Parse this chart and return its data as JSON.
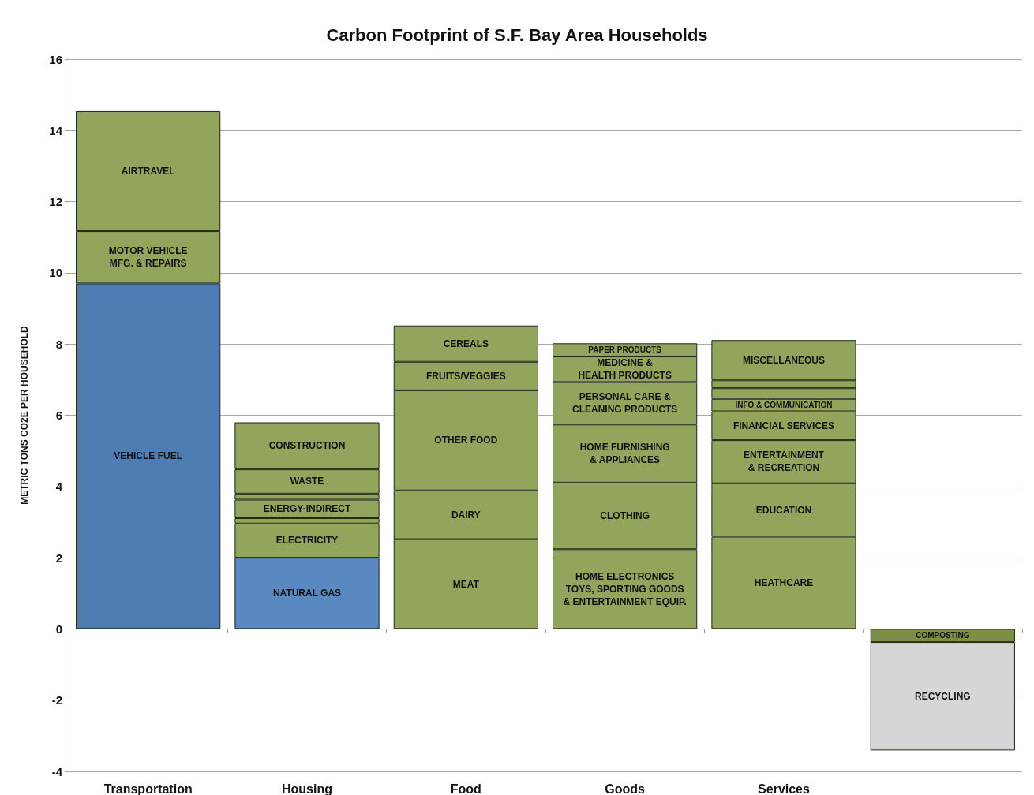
{
  "chart_data": {
    "type": "bar",
    "title": "Carbon Footprint of S.F. Bay Area Households",
    "ylabel": "METRIC TONS CO2E PER HOUSEHOLD",
    "categories": [
      "Transportation",
      "Housing",
      "Food",
      "Goods",
      "Services",
      null
    ],
    "stacked": true,
    "grid": "y",
    "legend": false,
    "ylim": [
      -4,
      16
    ],
    "yticks": [
      -4,
      -2,
      0,
      2,
      4,
      6,
      8,
      10,
      12,
      14,
      16
    ],
    "series": [
      {
        "name": "VEHICLE FUEL",
        "color": "#4f7db3",
        "values": [
          9.7,
          null,
          null,
          null,
          null,
          null
        ]
      },
      {
        "name": "MOTOR VEHICLE\nMFG. & REPAIRS",
        "color": "#93a55c",
        "values": [
          1.47,
          null,
          null,
          null,
          null,
          null
        ]
      },
      {
        "name": "AIRTRAVEL",
        "color": "#93a55c",
        "values": [
          3.37,
          null,
          null,
          null,
          null,
          null
        ]
      },
      {
        "name": "NATURAL GAS",
        "color": "#5a88c0",
        "values": [
          null,
          2.0,
          null,
          null,
          null,
          null
        ]
      },
      {
        "name": "ELECTRICITY",
        "color": "#93a55c",
        "values": [
          null,
          0.96,
          null,
          null,
          null,
          null
        ]
      },
      {
        "color": "#93a55c",
        "values": [
          null,
          0.15,
          null,
          null,
          null,
          null
        ]
      },
      {
        "name": "ENERGY-INDIRECT",
        "color": "#93a55c",
        "values": [
          null,
          0.52,
          null,
          null,
          null,
          null
        ]
      },
      {
        "color": "#93a55c",
        "values": [
          null,
          0.17,
          null,
          null,
          null,
          null
        ]
      },
      {
        "name": "WASTE",
        "color": "#93a55c",
        "values": [
          null,
          0.68,
          null,
          null,
          null,
          null
        ]
      },
      {
        "name": "CONSTRUCTION",
        "color": "#93a55c",
        "values": [
          null,
          1.32,
          null,
          null,
          null,
          null
        ]
      },
      {
        "name": "MEAT",
        "color": "#93a55c",
        "values": [
          null,
          null,
          2.52,
          null,
          null,
          null
        ]
      },
      {
        "name": "DAIRY",
        "color": "#93a55c",
        "values": [
          null,
          null,
          1.37,
          null,
          null,
          null
        ]
      },
      {
        "name": "OTHER FOOD",
        "color": "#93a55c",
        "values": [
          null,
          null,
          2.81,
          null,
          null,
          null
        ]
      },
      {
        "name": "FRUITS/VEGGIES",
        "color": "#93a55c",
        "values": [
          null,
          null,
          0.8,
          null,
          null,
          null
        ]
      },
      {
        "name": "CEREALS",
        "color": "#93a55c",
        "values": [
          null,
          null,
          1.02,
          null,
          null,
          null
        ]
      },
      {
        "name": "HOME ELECTRONICS\nTOYS, SPORTING GOODS\n& ENTERTAINMENT EQUIP.",
        "color": "#93a55c",
        "values": [
          null,
          null,
          null,
          2.24,
          null,
          null
        ]
      },
      {
        "name": "CLOTHING",
        "color": "#93a55c",
        "values": [
          null,
          null,
          null,
          1.87,
          null,
          null
        ]
      },
      {
        "name": "HOME FURNISHING\n& APPLIANCES",
        "color": "#93a55c",
        "values": [
          null,
          null,
          null,
          1.63,
          null,
          null
        ]
      },
      {
        "name": "PERSONAL CARE &\nCLEANING PRODUCTS",
        "color": "#93a55c",
        "values": [
          null,
          null,
          null,
          1.19,
          null,
          null
        ]
      },
      {
        "name": "MEDICINE &\nHEALTH PRODUCTS",
        "color": "#93a55c",
        "values": [
          null,
          null,
          null,
          0.72,
          null,
          null
        ]
      },
      {
        "name": "PAPER PRODUCTS",
        "color": "#93a55c",
        "values": [
          null,
          null,
          null,
          0.37,
          null,
          null
        ]
      },
      {
        "name": "HEATHCARE",
        "color": "#93a55c",
        "values": [
          null,
          null,
          null,
          null,
          2.59,
          null
        ]
      },
      {
        "name": "EDUCATION",
        "color": "#93a55c",
        "values": [
          null,
          null,
          null,
          null,
          1.5,
          null
        ]
      },
      {
        "name": "ENTERTAINMENT\n& RECREATION",
        "color": "#93a55c",
        "values": [
          null,
          null,
          null,
          null,
          1.21,
          null
        ]
      },
      {
        "name": "FINANCIAL SERVICES",
        "color": "#93a55c",
        "values": [
          null,
          null,
          null,
          null,
          0.81,
          null
        ]
      },
      {
        "name": "INFO & COMMUNICATION",
        "color": "#93a55c",
        "values": [
          null,
          null,
          null,
          null,
          0.35,
          null
        ]
      },
      {
        "color": "#93a55c",
        "values": [
          null,
          null,
          null,
          null,
          0.3,
          null
        ]
      },
      {
        "color": "#93a55c",
        "values": [
          null,
          null,
          null,
          null,
          0.22,
          null
        ]
      },
      {
        "name": "MISCELLANEOUS",
        "color": "#93a55c",
        "values": [
          null,
          null,
          null,
          null,
          1.13,
          null
        ]
      },
      {
        "name": "COMPOSTING",
        "color": "#7d8f45",
        "values": [
          null,
          null,
          null,
          null,
          null,
          -0.37
        ]
      },
      {
        "name": "RECYCLING",
        "color": "#d6d6d6",
        "values": [
          null,
          null,
          null,
          null,
          null,
          -3.04
        ]
      }
    ]
  }
}
